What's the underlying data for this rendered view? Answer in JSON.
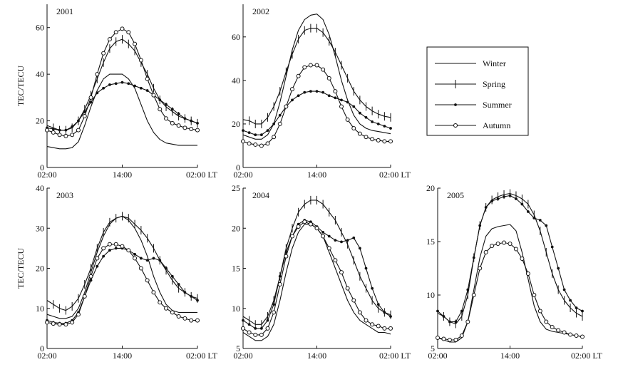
{
  "chart_data": [
    {
      "type": "line",
      "title": "2001",
      "ylabel": "TEC/TECU",
      "x_ticks": [
        "02:00",
        "14:00",
        "02:00 LT"
      ],
      "ylim": [
        0,
        70
      ],
      "y_ticks": [
        0,
        20,
        40,
        60
      ],
      "x_hours": [
        2,
        3,
        4,
        5,
        6,
        7,
        8,
        9,
        10,
        11,
        12,
        13,
        14,
        15,
        16,
        17,
        18,
        19,
        20,
        21,
        22,
        23,
        24,
        25,
        26
      ],
      "series": [
        {
          "name": "Winter",
          "values": [
            9,
            8.5,
            8,
            8,
            8.5,
            11,
            18,
            26,
            33,
            38,
            40,
            40,
            40,
            38,
            34,
            27,
            20,
            15,
            12,
            10.5,
            10,
            9.5,
            9.5,
            9.5,
            9.5
          ]
        },
        {
          "name": "Spring",
          "values": [
            18,
            17,
            16,
            16,
            17,
            20,
            25,
            31,
            38,
            45,
            51,
            54,
            55,
            53,
            50,
            45,
            40,
            34,
            29,
            26,
            24,
            22,
            21,
            20,
            19
          ]
        },
        {
          "name": "Summer",
          "values": [
            17,
            16.5,
            16,
            16,
            17.5,
            20,
            24,
            28,
            32,
            34,
            35.5,
            36,
            36.5,
            36,
            35,
            34,
            33,
            31,
            29,
            27,
            25,
            23,
            21,
            20,
            19
          ]
        },
        {
          "name": "Autumn",
          "values": [
            16,
            15,
            14,
            13.5,
            14,
            16,
            22,
            30,
            40,
            49,
            55,
            58,
            59.5,
            58,
            53,
            46,
            38,
            31,
            25,
            21,
            19,
            18,
            17,
            16.5,
            16
          ]
        }
      ]
    },
    {
      "type": "line",
      "title": "2002",
      "ylabel": "",
      "x_ticks": [
        "02:00",
        "14:00",
        "02:00 LT"
      ],
      "ylim": [
        0,
        75
      ],
      "y_ticks": [
        0,
        20,
        40,
        60
      ],
      "x_hours": [
        2,
        3,
        4,
        5,
        6,
        7,
        8,
        9,
        10,
        11,
        12,
        13,
        14,
        15,
        16,
        17,
        18,
        19,
        20,
        21,
        22,
        23,
        24,
        25,
        26
      ],
      "series": [
        {
          "name": "Winter",
          "values": [
            15,
            14,
            13,
            13,
            15,
            20,
            30,
            42,
            54,
            63,
            68,
            70,
            70.5,
            68,
            61,
            51,
            40,
            31,
            24,
            20,
            18,
            17,
            16.5,
            16,
            15.5
          ]
        },
        {
          "name": "Spring",
          "values": [
            22,
            21.5,
            20,
            20,
            23,
            28,
            35,
            44,
            52,
            59,
            63,
            64,
            64,
            62,
            58,
            53,
            47,
            41,
            35,
            31,
            28,
            26,
            24.5,
            23.5,
            23
          ]
        },
        {
          "name": "Summer",
          "values": [
            17,
            16,
            15,
            15,
            17,
            20,
            24,
            28,
            31,
            33,
            34.5,
            35,
            35,
            34.5,
            33,
            32,
            31,
            30,
            28,
            25,
            23,
            21,
            20,
            19,
            18
          ]
        },
        {
          "name": "Autumn",
          "values": [
            12,
            11,
            10.5,
            10,
            11,
            14,
            20,
            28,
            36,
            42,
            46,
            47,
            47,
            45,
            41,
            35,
            28,
            22,
            18,
            15.5,
            14,
            13,
            12.5,
            12,
            12
          ]
        }
      ]
    },
    {
      "type": "line",
      "title": "2003",
      "ylabel": "TEC/TECU",
      "x_ticks": [
        "02:00",
        "14:00",
        "02:00 LT"
      ],
      "ylim": [
        0,
        40
      ],
      "y_ticks": [
        0,
        10,
        20,
        30,
        40
      ],
      "x_hours": [
        2,
        3,
        4,
        5,
        6,
        7,
        8,
        9,
        10,
        11,
        12,
        13,
        14,
        15,
        16,
        17,
        18,
        19,
        20,
        21,
        22,
        23,
        24,
        25,
        26
      ],
      "series": [
        {
          "name": "Winter",
          "values": [
            8.5,
            8,
            7.5,
            7.5,
            8,
            10,
            14,
            19,
            24,
            28,
            31,
            32.5,
            33,
            32,
            30,
            27,
            23,
            18,
            14,
            11,
            9.5,
            9,
            9,
            9,
            9
          ]
        },
        {
          "name": "Spring",
          "values": [
            12,
            11,
            10,
            9.5,
            10.5,
            12.5,
            16,
            20,
            25,
            29,
            31.5,
            32.5,
            33,
            32.5,
            31,
            29.5,
            27.5,
            25,
            22,
            19.5,
            17,
            15,
            14,
            13,
            12.5
          ]
        },
        {
          "name": "Summer",
          "values": [
            7,
            6.5,
            6.3,
            6.3,
            7,
            9,
            13,
            17,
            20.5,
            23,
            24.5,
            25,
            25,
            24.5,
            23.5,
            22.5,
            22,
            22.5,
            22,
            20,
            18,
            16,
            14,
            13,
            12
          ]
        },
        {
          "name": "Autumn",
          "values": [
            6.5,
            6.2,
            6,
            6,
            6.5,
            8.5,
            13,
            18,
            22.5,
            25,
            26,
            26,
            25.5,
            24.5,
            22.5,
            20,
            17,
            14,
            11.5,
            10,
            9,
            8,
            7.5,
            7,
            7
          ]
        }
      ]
    },
    {
      "type": "line",
      "title": "2004",
      "ylabel": "",
      "x_ticks": [
        "02:00",
        "14:00",
        "02:00 LT"
      ],
      "ylim": [
        5,
        25
      ],
      "y_ticks": [
        5,
        10,
        15,
        20,
        25
      ],
      "x_hours": [
        2,
        3,
        4,
        5,
        6,
        7,
        8,
        9,
        10,
        11,
        12,
        13,
        14,
        15,
        16,
        17,
        18,
        19,
        20,
        21,
        22,
        23,
        24,
        25,
        26
      ],
      "series": [
        {
          "name": "Winter",
          "values": [
            7,
            6.5,
            6,
            6,
            6.5,
            8,
            11,
            14.5,
            17.5,
            19.5,
            20.5,
            20.5,
            20,
            19,
            17,
            15,
            13,
            11,
            9.5,
            8.5,
            8,
            7.5,
            7,
            7,
            6.8
          ]
        },
        {
          "name": "Spring",
          "values": [
            9,
            8.5,
            8,
            8,
            9,
            11,
            14,
            17.5,
            20,
            22,
            23,
            23.5,
            23.5,
            23,
            22,
            21,
            19.5,
            18,
            16,
            14,
            12.5,
            11,
            10,
            9.5,
            9.2
          ]
        },
        {
          "name": "Summer",
          "values": [
            8.5,
            8,
            7.5,
            7.5,
            8.5,
            10.5,
            14,
            17,
            19,
            20.5,
            21,
            20.8,
            20.2,
            19.5,
            19,
            18.5,
            18.3,
            18.5,
            18.8,
            17.5,
            15,
            12.5,
            10.5,
            9.5,
            9
          ]
        },
        {
          "name": "Autumn",
          "values": [
            7.5,
            7,
            6.7,
            6.7,
            7.5,
            9.5,
            13,
            16.5,
            19,
            20.2,
            20.8,
            20.5,
            20,
            19,
            17.5,
            16,
            14.5,
            12.5,
            11,
            9.5,
            8.5,
            8,
            7.8,
            7.5,
            7.5
          ]
        }
      ]
    },
    {
      "type": "line",
      "title": "2005",
      "ylabel": "",
      "x_ticks": [
        "02:00",
        "14:00",
        "02:00 LT"
      ],
      "ylim": [
        5,
        20
      ],
      "y_ticks": [
        5,
        10,
        15,
        20
      ],
      "x_hours": [
        2,
        3,
        4,
        5,
        6,
        7,
        8,
        9,
        10,
        11,
        12,
        13,
        14,
        15,
        16,
        17,
        18,
        19,
        20,
        21,
        22,
        23,
        24,
        25,
        26
      ],
      "series": [
        {
          "name": "Winter",
          "values": [
            6,
            5.8,
            5.6,
            5.6,
            6,
            7.5,
            10.5,
            13.5,
            15.5,
            16.2,
            16.4,
            16.5,
            16.6,
            16,
            14,
            11.5,
            9,
            7.5,
            6.8,
            6.6,
            6.5,
            6.4,
            6.3,
            6.2,
            6.1
          ]
        },
        {
          "name": "Spring",
          "values": [
            8.3,
            8,
            7.5,
            7.3,
            8,
            10,
            13.5,
            16.5,
            18.2,
            18.9,
            19.2,
            19.4,
            19.5,
            19.3,
            19,
            18.5,
            17.5,
            16,
            14,
            12,
            10.5,
            9.5,
            8.8,
            8.3,
            8
          ]
        },
        {
          "name": "Summer",
          "values": [
            8.5,
            8,
            7.5,
            7.5,
            8.5,
            10.5,
            13.5,
            16.5,
            18.2,
            18.8,
            19,
            19.2,
            19.3,
            19,
            18.5,
            17.8,
            17.2,
            17,
            16.5,
            14.5,
            12.5,
            10.5,
            9.5,
            8.8,
            8.5
          ]
        },
        {
          "name": "Autumn",
          "values": [
            6,
            5.9,
            5.8,
            5.8,
            6.2,
            7.5,
            10,
            12.5,
            14,
            14.6,
            14.8,
            14.9,
            14.8,
            14.3,
            13.4,
            12,
            10,
            8.5,
            7.5,
            7,
            6.7,
            6.5,
            6.3,
            6.2,
            6.1
          ]
        }
      ]
    }
  ],
  "legend": {
    "entries": [
      {
        "label": "Winter",
        "marker": "none"
      },
      {
        "label": "Spring",
        "marker": "plus"
      },
      {
        "label": "Summer",
        "marker": "dot"
      },
      {
        "label": "Autumn",
        "marker": "circle"
      }
    ]
  }
}
